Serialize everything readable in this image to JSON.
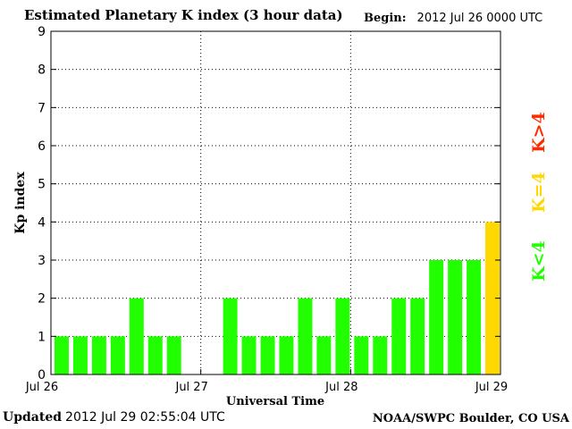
{
  "header": {
    "title": "Estimated Planetary K index (3 hour data)",
    "begin_label": "Begin:",
    "begin_value": "2012 Jul 26 0000 UTC"
  },
  "footer": {
    "updated_label": "Updated",
    "updated_value": "2012 Jul 29 02:55:04 UTC",
    "credit": "NOAA/SWPC Boulder, CO USA"
  },
  "legend": {
    "high": "K>4",
    "equal": "K=4",
    "low": "K<4"
  },
  "colors": {
    "low": "#22ff00",
    "equal": "#ffd800",
    "high": "#ff2b00"
  },
  "chart_data": {
    "type": "bar",
    "xlabel": "Universal Time",
    "ylabel": "Kp index",
    "ylim": [
      0,
      9
    ],
    "yticks": [
      0,
      1,
      2,
      3,
      4,
      5,
      6,
      7,
      8,
      9
    ],
    "xticks": [
      "Jul 26",
      "Jul 27",
      "Jul 28",
      "Jul 29"
    ],
    "grid": true,
    "values": [
      1,
      1,
      1,
      1,
      2,
      1,
      1,
      0,
      0,
      2,
      1,
      1,
      1,
      2,
      1,
      2,
      1,
      1,
      2,
      2,
      3,
      3,
      3,
      4
    ]
  }
}
